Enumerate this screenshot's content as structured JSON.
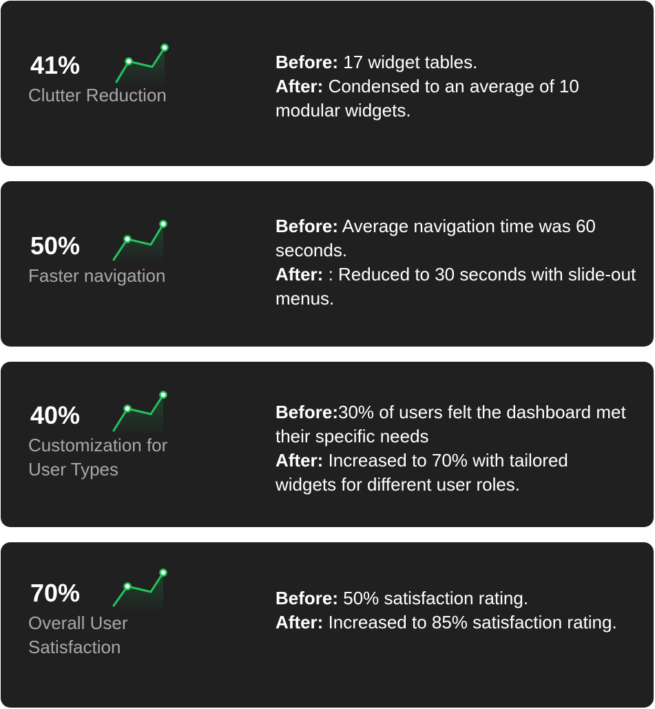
{
  "accent_color": "#22c55e",
  "cards": [
    {
      "percent": "41%",
      "label": "Clutter Reduction",
      "before_label": "Before:",
      "before_text": " 17 widget tables.",
      "after_label": "After:",
      "after_text": " Condensed to an average of 10 modular widgets."
    },
    {
      "percent": "50%",
      "label": "Faster navigation",
      "before_label": "Before:",
      "before_text": " Average navigation time was 60 seconds.",
      "after_label": "After:",
      "after_text": " : Reduced to 30 seconds with slide-out menus."
    },
    {
      "percent": "40%",
      "label": "Customization for User Types",
      "before_label": "Before:",
      "before_text": "30% of users felt the dashboard met their specific needs",
      "after_label": "After:",
      "after_text": "  Increased to 70% with tailored widgets for different user roles."
    },
    {
      "percent": "70%",
      "label": "Overall User Satisfaction",
      "before_label": "Before:",
      "before_text": " 50% satisfaction rating.",
      "after_label": "After:",
      "after_text": " Increased to 85% satisfaction rating."
    }
  ]
}
